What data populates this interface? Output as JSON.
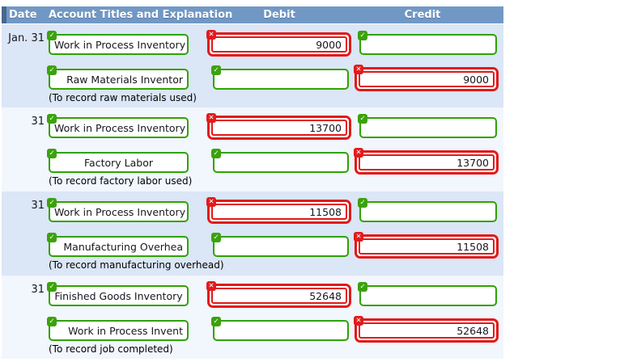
{
  "header": {
    "date": "Date",
    "account": "Account Titles and Explanation",
    "debit": "Debit",
    "credit": "Credit"
  },
  "icons": {
    "check": "✓",
    "cross": "✕"
  },
  "colors": {
    "correct_green": "#2fa302",
    "error_red": "#e11b1b",
    "header_blue": "#7198c5",
    "band_blue": "#dbe6f6",
    "band_light": "#f2f6fd"
  },
  "entries": [
    {
      "date": "Jan. 31",
      "rowA": {
        "account": {
          "value": "Work in Process Inventory",
          "status": "correct"
        },
        "debit": {
          "value": "9000",
          "status": "wrong"
        },
        "credit": {
          "value": "",
          "status": "correct"
        }
      },
      "rowB": {
        "account": {
          "value": "Raw Materials Inventor",
          "status": "correct"
        },
        "debit": {
          "value": "",
          "status": "correct"
        },
        "credit": {
          "value": "9000",
          "status": "wrong"
        }
      },
      "explanation": "(To record raw materials used)"
    },
    {
      "date": "31",
      "rowA": {
        "account": {
          "value": "Work in Process Inventory",
          "status": "correct"
        },
        "debit": {
          "value": "13700",
          "status": "wrong"
        },
        "credit": {
          "value": "",
          "status": "correct"
        }
      },
      "rowB": {
        "account": {
          "value": "Factory Labor",
          "status": "correct"
        },
        "debit": {
          "value": "",
          "status": "correct"
        },
        "credit": {
          "value": "13700",
          "status": "wrong"
        }
      },
      "explanation": "(To record factory labor used)"
    },
    {
      "date": "31",
      "rowA": {
        "account": {
          "value": "Work in Process Inventory",
          "status": "correct"
        },
        "debit": {
          "value": "11508",
          "status": "wrong"
        },
        "credit": {
          "value": "",
          "status": "correct"
        }
      },
      "rowB": {
        "account": {
          "value": "Manufacturing Overhea",
          "status": "correct"
        },
        "debit": {
          "value": "",
          "status": "correct"
        },
        "credit": {
          "value": "11508",
          "status": "wrong"
        }
      },
      "explanation": "(To record manufacturing overhead)"
    },
    {
      "date": "31",
      "rowA": {
        "account": {
          "value": "Finished Goods Inventory",
          "status": "correct"
        },
        "debit": {
          "value": "52648",
          "status": "wrong"
        },
        "credit": {
          "value": "",
          "status": "correct"
        }
      },
      "rowB": {
        "account": {
          "value": "Work in Process Invent",
          "status": "correct"
        },
        "debit": {
          "value": "",
          "status": "correct"
        },
        "credit": {
          "value": "52648",
          "status": "wrong"
        }
      },
      "explanation": "(To record job completed)"
    }
  ]
}
